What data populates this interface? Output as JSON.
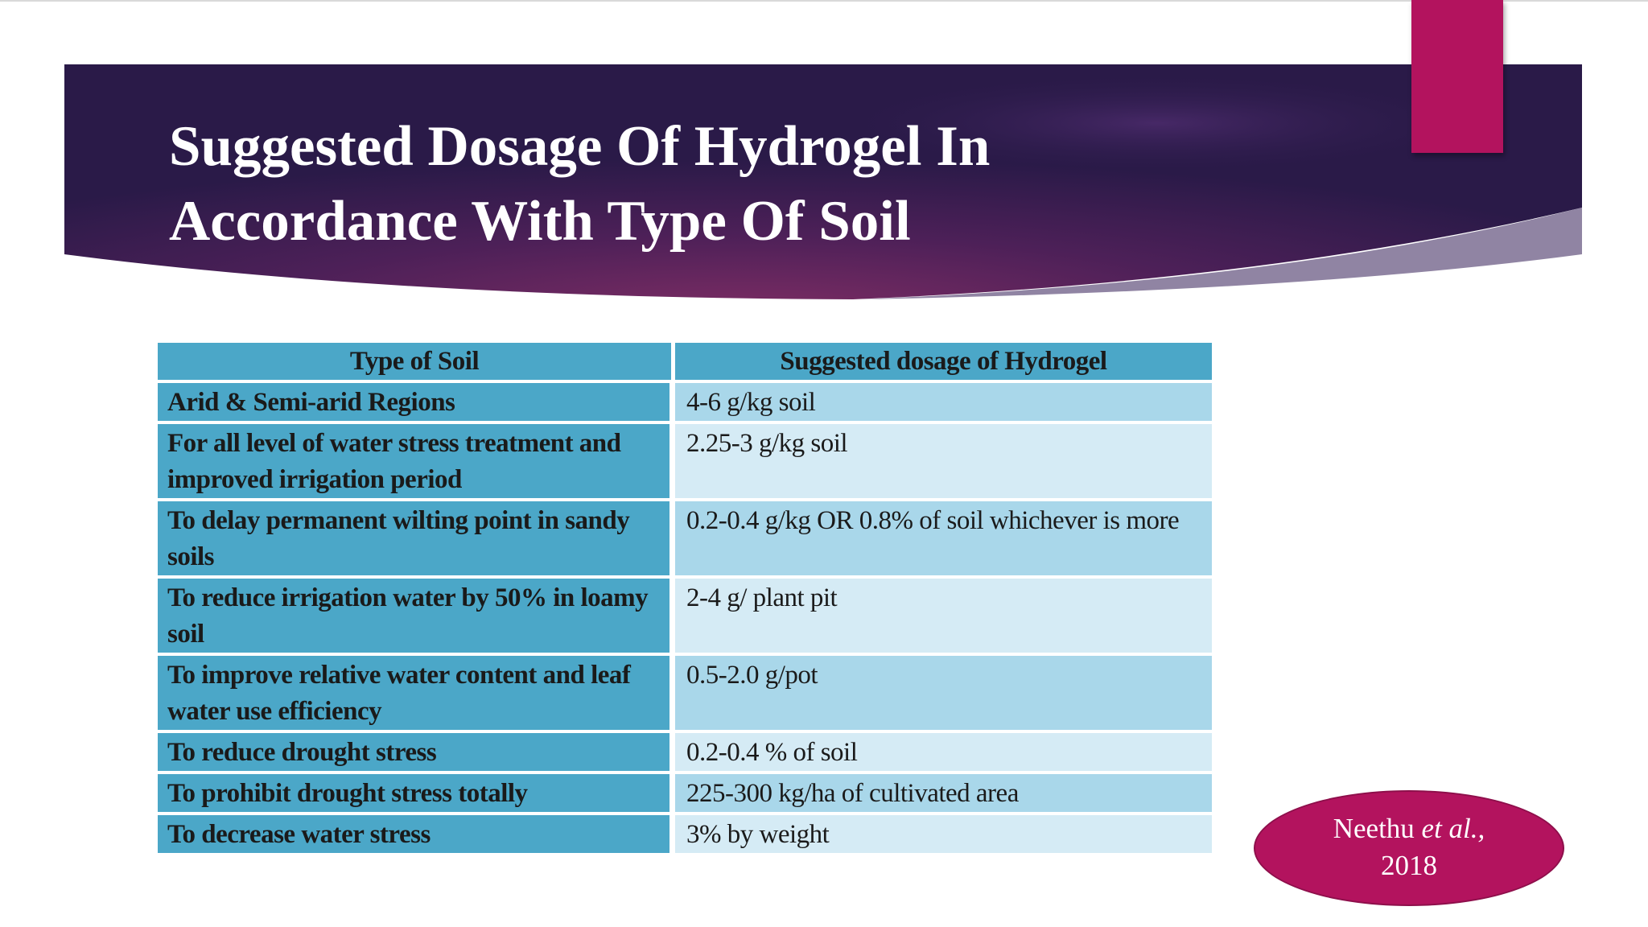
{
  "slide": {
    "title_line1": "Suggested Dosage Of Hydrogel In",
    "title_line2": "Accordance With Type Of Soil",
    "colors": {
      "banner_dark": "#2b1b4b",
      "banner_mid": "#5c2a61",
      "accent": "#b3135e",
      "table_dark": "#4ba7c8",
      "table_light": "#a9d7ea",
      "table_lighter": "#d5ebf5"
    }
  },
  "table": {
    "headers": [
      "Type of Soil",
      "Suggested dosage of Hydrogel"
    ],
    "rows": [
      {
        "soil": "Arid & Semi-arid Regions",
        "dose": "4-6 g/kg soil"
      },
      {
        "soil": "For all level of water stress treatment and improved irrigation period",
        "dose": "2.25-3 g/kg soil"
      },
      {
        "soil": "To delay permanent wilting point in sandy soils",
        "dose": "0.2-0.4 g/kg OR 0.8% of soil whichever is more"
      },
      {
        "soil": "To reduce irrigation water by 50% in loamy soil",
        "dose": "2-4 g/ plant pit"
      },
      {
        "soil": "To improve relative water content and leaf water use efficiency",
        "dose": "0.5-2.0 g/pot"
      },
      {
        "soil": "To reduce drought stress",
        "dose": "0.2-0.4 % of soil"
      },
      {
        "soil": "To prohibit drought stress totally",
        "dose": "225-300 kg/ha of cultivated area"
      },
      {
        "soil": "To decrease water stress",
        "dose": "3% by weight"
      }
    ]
  },
  "citation": {
    "author": "Neethu",
    "etal": "et al.,",
    "year": "2018"
  }
}
